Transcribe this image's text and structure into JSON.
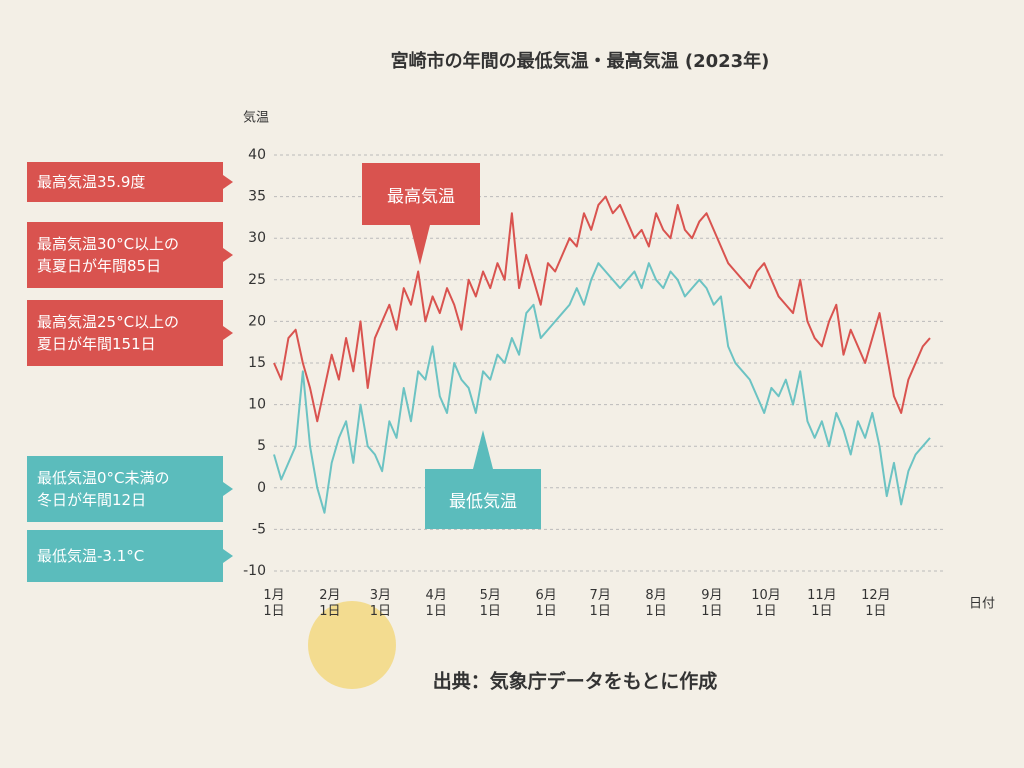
{
  "chart_data": {
    "type": "line",
    "title": "宮崎市の年間の最低気温・最高気温 (2023年)",
    "y_label": "気温",
    "x_label": "日付",
    "source": "出典：気象庁データをもとに作成",
    "x": [
      0,
      4,
      8,
      12,
      16,
      20,
      24,
      28,
      32,
      36,
      40,
      44,
      48,
      52,
      56,
      60,
      64,
      68,
      72,
      76,
      80,
      84,
      88,
      92,
      96,
      100,
      104,
      108,
      112,
      116,
      120,
      124,
      128,
      132,
      136,
      140,
      144,
      148,
      152,
      156,
      160,
      164,
      168,
      172,
      176,
      180,
      184,
      188,
      192,
      196,
      200,
      204,
      208,
      212,
      216,
      220,
      224,
      228,
      232,
      236,
      240,
      244,
      248,
      252,
      256,
      260,
      264,
      268,
      272,
      276,
      280,
      284,
      288,
      292,
      296,
      300,
      304,
      308,
      312,
      316,
      320,
      324,
      328,
      332,
      336,
      340,
      344,
      348,
      352,
      356,
      360,
      364
    ],
    "series": [
      {
        "name": "最高気温",
        "color": "#d9534f",
        "values": [
          15,
          13,
          18,
          19,
          15,
          12,
          8,
          12,
          16,
          13,
          18,
          14,
          20,
          12,
          18,
          20,
          22,
          19,
          24,
          22,
          26,
          20,
          23,
          21,
          24,
          22,
          19,
          25,
          23,
          26,
          24,
          27,
          25,
          33,
          24,
          28,
          25,
          22,
          27,
          26,
          28,
          30,
          29,
          33,
          31,
          34,
          35,
          33,
          34,
          32,
          30,
          31,
          29,
          33,
          31,
          30,
          34,
          31,
          30,
          32,
          33,
          31,
          29,
          27,
          26,
          25,
          24,
          26,
          27,
          25,
          23,
          22,
          21,
          25,
          20,
          18,
          17,
          20,
          22,
          16,
          19,
          17,
          15,
          18,
          21,
          16,
          11,
          9,
          13,
          15,
          17,
          18
        ]
      },
      {
        "name": "最低気温",
        "color": "#6cc3c3",
        "values": [
          4,
          1,
          3,
          5,
          14,
          5,
          0,
          -3,
          3,
          6,
          8,
          3,
          10,
          5,
          4,
          2,
          8,
          6,
          12,
          8,
          14,
          13,
          17,
          11,
          9,
          15,
          13,
          12,
          9,
          14,
          13,
          16,
          15,
          18,
          16,
          21,
          22,
          18,
          19,
          20,
          21,
          22,
          24,
          22,
          25,
          27,
          26,
          25,
          24,
          25,
          26,
          24,
          27,
          25,
          24,
          26,
          25,
          23,
          24,
          25,
          24,
          22,
          23,
          17,
          15,
          14,
          13,
          11,
          9,
          12,
          11,
          13,
          10,
          14,
          8,
          6,
          8,
          5,
          9,
          7,
          4,
          8,
          6,
          9,
          5,
          -1,
          3,
          -2,
          2,
          4,
          5,
          6
        ]
      }
    ],
    "xlim": [
      0,
      364
    ],
    "xticks": [
      {
        "value": 0,
        "label": "1月\n1日"
      },
      {
        "value": 31,
        "label": "2月\n1日"
      },
      {
        "value": 59,
        "label": "3月\n1日"
      },
      {
        "value": 90,
        "label": "4月\n1日"
      },
      {
        "value": 120,
        "label": "5月\n1日"
      },
      {
        "value": 151,
        "label": "6月\n1日"
      },
      {
        "value": 181,
        "label": "7月\n1日"
      },
      {
        "value": 212,
        "label": "8月\n1日"
      },
      {
        "value": 243,
        "label": "9月\n1日"
      },
      {
        "value": 273,
        "label": "10月\n1日"
      },
      {
        "value": 304,
        "label": "11月\n1日"
      },
      {
        "value": 334,
        "label": "12月\n1日"
      }
    ],
    "ylim": [
      -10,
      40
    ],
    "yticks": [
      -10,
      -5,
      0,
      5,
      10,
      15,
      20,
      25,
      30,
      35,
      40
    ],
    "grid": true,
    "annotations": [
      {
        "text": "最高気温35.9度",
        "color": "#d9534f"
      },
      {
        "text": "最高気温30°C以上の\n真夏日が年間85日",
        "color": "#d9534f"
      },
      {
        "text": "最高気温25°C以上の\n夏日が年間151日",
        "color": "#d9534f"
      },
      {
        "text": "最低気温0°C未満の\n冬日が年間12日",
        "color": "#5bbcbc"
      },
      {
        "text": "最低気温-3.1°C",
        "color": "#5bbcbc"
      }
    ]
  }
}
